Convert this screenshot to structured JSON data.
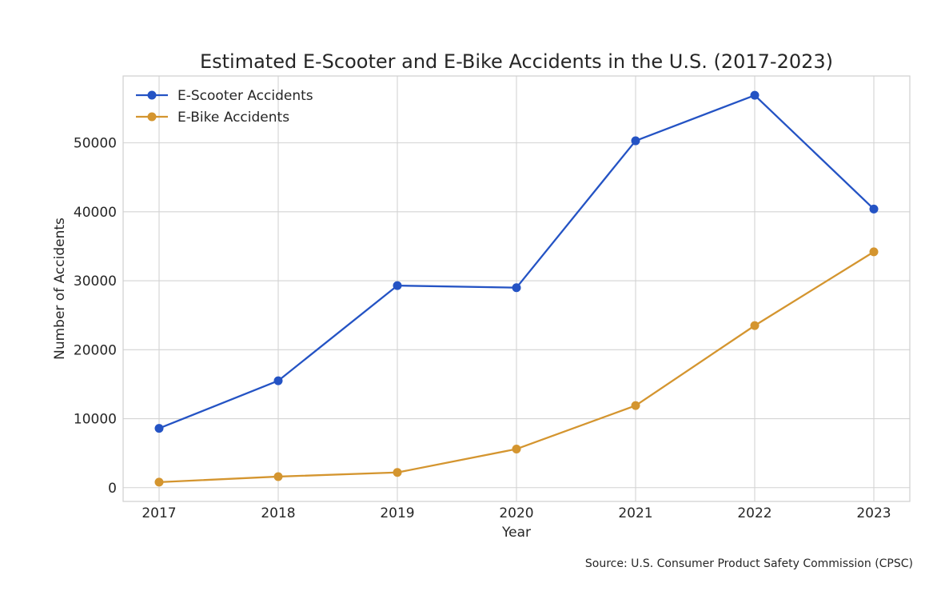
{
  "chart_data": {
    "type": "line",
    "title": "Estimated E-Scooter and E-Bike Accidents in the U.S. (2017-2023)",
    "xlabel": "Year",
    "ylabel": "Number of Accidents",
    "x": [
      "2017",
      "2018",
      "2019",
      "2020",
      "2021",
      "2022",
      "2023"
    ],
    "yticks": [
      "0",
      "10000",
      "20000",
      "30000",
      "40000",
      "50000"
    ],
    "ytick_values": [
      0,
      10000,
      20000,
      30000,
      40000,
      50000
    ],
    "ylim": [
      -2000,
      59700
    ],
    "grid": true,
    "legend_position": "top-left",
    "series": [
      {
        "name": "E-Scooter Accidents",
        "color": "#2453c4",
        "values": [
          8600,
          15500,
          29300,
          29000,
          50300,
          56900,
          40400
        ]
      },
      {
        "name": "E-Bike Accidents",
        "color": "#d4952f",
        "values": [
          800,
          1600,
          2200,
          5600,
          11900,
          23500,
          34200
        ]
      }
    ],
    "source": "Source: U.S. Consumer Product Safety Commission (CPSC)"
  }
}
